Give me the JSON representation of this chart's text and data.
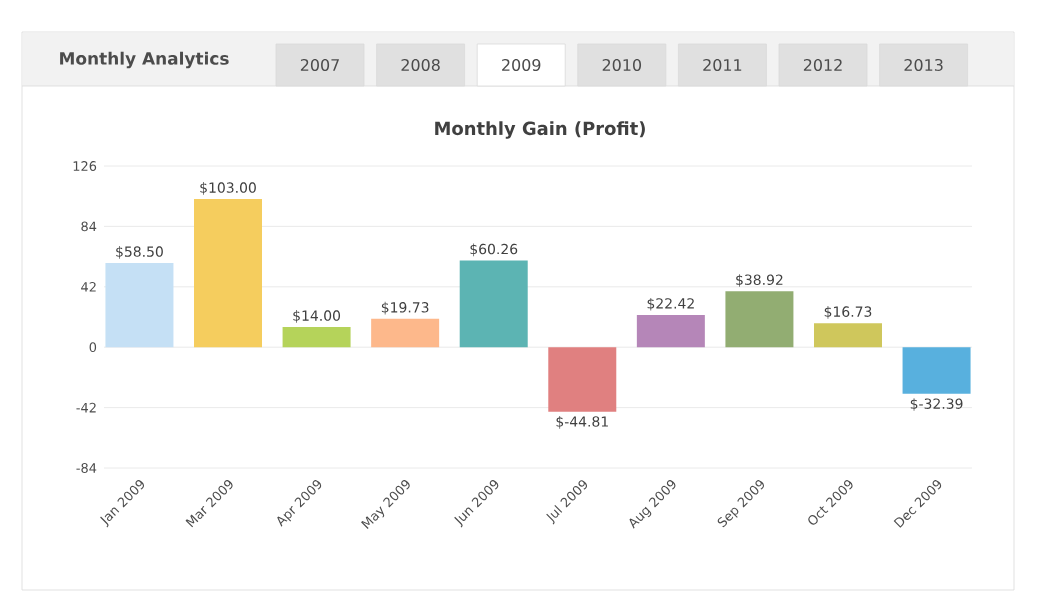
{
  "chart_data": {
    "type": "bar",
    "title": "Monthly Gain (Profit)",
    "annotations": [
      "Monthly Analytics",
      "2007",
      "2008",
      "2009",
      "2010",
      "2011",
      "2012",
      "2013"
    ],
    "categories": [
      "Jan 2009",
      "Mar 2009",
      "Apr 2009",
      "May 2009",
      "Jun 2009",
      "Jul 2009",
      "Aug 2009",
      "Sep 2009",
      "Oct 2009",
      "Dec 2009"
    ],
    "values": [
      58.5,
      103,
      14,
      19.73,
      60.26,
      -44.81,
      22.42,
      38.92,
      16.73,
      -32.39
    ],
    "value_labels": [
      "$58.50",
      "$103.00",
      "$14.00",
      "$19.73",
      "$60.26",
      "$-44.81",
      "$22.42",
      "$38.92",
      "$16.73",
      "$-32.39"
    ],
    "colors": [
      "#c5e0f5",
      "#f5cd5e",
      "#b5d35a",
      "#fdb88b",
      "#5cb4b3",
      "#e08080",
      "#b586b8",
      "#92ad72",
      "#cfc75c",
      "#58b0de"
    ],
    "ylim": [
      -84,
      126
    ],
    "yticks": [
      -84,
      -42,
      0,
      42,
      84,
      126
    ],
    "grid": "y"
  }
}
